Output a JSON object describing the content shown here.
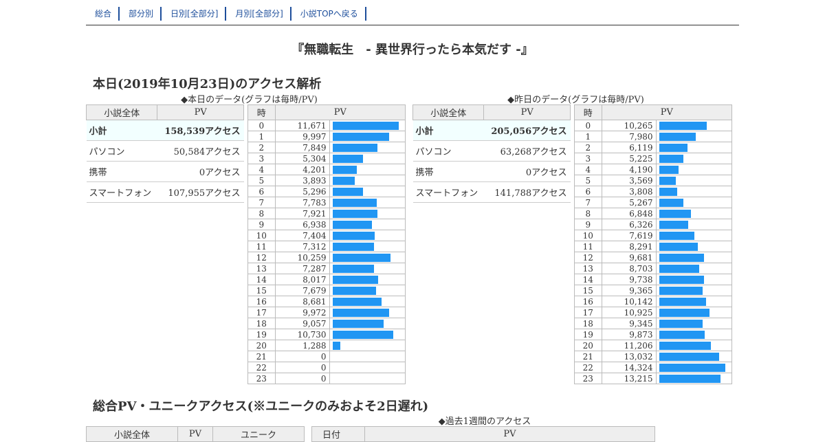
{
  "nav": [
    "総合",
    "部分別",
    "日別[全部分]",
    "月別[全部分]",
    "小説TOPへ戻る"
  ],
  "title": "『無職転生　- 異世界行ったら本気だす -』",
  "section1": "本日(2019年10月23日)のアクセス解析",
  "today": {
    "caption": "◆本日のデータ(グラフは毎時/PV)",
    "hdr": {
      "col1": "小説全体",
      "col2": "PV",
      "h": "時",
      "pv": "PV"
    },
    "rows": [
      [
        "小計",
        "158,539アクセス"
      ],
      [
        "パソコン",
        "50,584アクセス"
      ],
      [
        "携帯",
        "0アクセス"
      ],
      [
        "スマートフォン",
        "107,955アクセス"
      ]
    ],
    "hours": [
      11671,
      9997,
      7849,
      5304,
      4201,
      3893,
      5296,
      7783,
      7921,
      6938,
      7404,
      7312,
      10259,
      7287,
      8017,
      7679,
      8681,
      9972,
      9057,
      10730,
      1288,
      0,
      0,
      0
    ],
    "labels": [
      "11,671",
      "9,997",
      "7,849",
      "5,304",
      "4,201",
      "3,893",
      "5,296",
      "7,783",
      "7,921",
      "6,938",
      "7,404",
      "7,312",
      "10,259",
      "7,287",
      "8,017",
      "7,679",
      "8,681",
      "9,972",
      "9,057",
      "10,730",
      "1,288",
      "0",
      "0",
      "0"
    ]
  },
  "yest": {
    "caption": "◆昨日のデータ(グラフは毎時/PV)",
    "hdr": {
      "col1": "小説全体",
      "col2": "PV",
      "h": "時",
      "pv": "PV"
    },
    "rows": [
      [
        "小計",
        "205,056アクセス"
      ],
      [
        "パソコン",
        "63,268アクセス"
      ],
      [
        "携帯",
        "0アクセス"
      ],
      [
        "スマートフォン",
        "141,788アクセス"
      ]
    ],
    "hours": [
      10265,
      7980,
      6119,
      5225,
      4190,
      3569,
      3808,
      5267,
      6848,
      6326,
      7619,
      8291,
      9681,
      8703,
      9738,
      9365,
      10142,
      10925,
      9345,
      9873,
      11206,
      13032,
      14324,
      13215
    ],
    "labels": [
      "10,265",
      "7,980",
      "6,119",
      "5,225",
      "4,190",
      "3,569",
      "3,808",
      "5,267",
      "6,848",
      "6,326",
      "7,619",
      "8,291",
      "9,681",
      "8,703",
      "9,738",
      "9,365",
      "10,142",
      "10,925",
      "9,345",
      "9,873",
      "11,206",
      "13,032",
      "14,324",
      "13,215"
    ]
  },
  "section2": "総合PV・ユニークアクセス(※ユニークのみおよそ2日遅れ)",
  "week_caption": "◆過去1週間のアクセス",
  "bottom_hdr": {
    "a": "小説全体",
    "b": "PV",
    "c": "ユニーク",
    "d": "日付",
    "e": "PV"
  },
  "colors": {
    "bar": "#2196f3",
    "nav": "#1d4e9b"
  }
}
